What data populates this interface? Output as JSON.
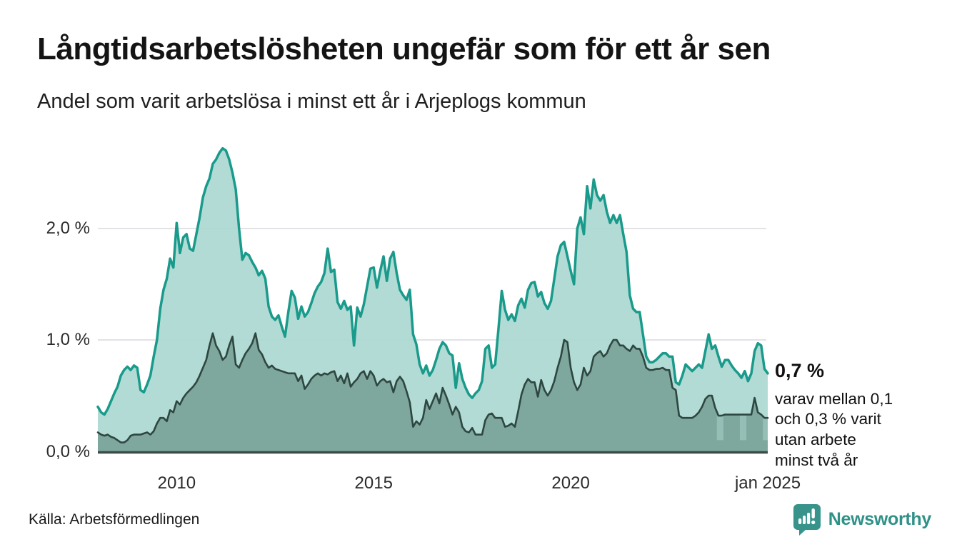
{
  "title": "Långtidsarbetslösheten ungefär som för ett år sen",
  "subtitle": "Andel som varit arbetslösa i minst ett år i Arjeplogs kommun",
  "annotation": {
    "value_label": "0,7 %",
    "lines": [
      "varav mellan 0,1",
      "och 0,3 % varit",
      "utan arbete",
      "minst två år"
    ]
  },
  "source": "Källa: Arbetsförmedlingen",
  "logo": {
    "name": "Newsworthy",
    "icon": "newsworthy-speech-bubble-bars-icon",
    "color": "#2f9187"
  },
  "chart_data": {
    "type": "area",
    "title": "Långtidsarbetslösheten ungefär som för ett år sen",
    "subtitle": "Andel som varit arbetslösa i minst ett år i Arjeplogs kommun",
    "x_start": "2008-01",
    "x_end": "2025-01",
    "frequency": "monthly",
    "ylim": [
      0,
      2.77
    ],
    "grid": "horizontal",
    "legend": "none",
    "colors": {
      "grid": "#e2e2e7",
      "baseline": "#3c4b46",
      "tick_text": "#2b2b2b"
    },
    "yticks": [
      {
        "label": "2,0 %",
        "value": 2.0
      },
      {
        "label": "1,0 %",
        "value": 1.0
      },
      {
        "label": "0,0 %",
        "value": 0.0
      }
    ],
    "xticks": [
      {
        "label": "2010",
        "month_index": 24
      },
      {
        "label": "2015",
        "month_index": 84
      },
      {
        "label": "2020",
        "month_index": 144
      },
      {
        "label": "jan 2025",
        "month_index": 204
      }
    ],
    "series": [
      {
        "name": "Andel arbetslösa minst ett år",
        "line_color": "#199a8b",
        "fill_color": "#abd8d1",
        "last_value_label": "0,7 %",
        "values": [
          0.4,
          0.35,
          0.33,
          0.38,
          0.45,
          0.52,
          0.58,
          0.68,
          0.73,
          0.76,
          0.73,
          0.77,
          0.75,
          0.55,
          0.53,
          0.6,
          0.68,
          0.85,
          1.0,
          1.28,
          1.45,
          1.55,
          1.73,
          1.65,
          2.05,
          1.78,
          1.92,
          1.95,
          1.82,
          1.8,
          1.95,
          2.1,
          2.28,
          2.38,
          2.45,
          2.58,
          2.62,
          2.68,
          2.72,
          2.7,
          2.62,
          2.5,
          2.35,
          2.0,
          1.72,
          1.78,
          1.76,
          1.7,
          1.65,
          1.58,
          1.62,
          1.55,
          1.3,
          1.21,
          1.18,
          1.22,
          1.12,
          1.03,
          1.25,
          1.44,
          1.38,
          1.19,
          1.3,
          1.21,
          1.25,
          1.33,
          1.42,
          1.48,
          1.52,
          1.6,
          1.82,
          1.61,
          1.63,
          1.34,
          1.28,
          1.35,
          1.27,
          1.3,
          0.95,
          1.29,
          1.21,
          1.32,
          1.48,
          1.64,
          1.65,
          1.47,
          1.62,
          1.75,
          1.53,
          1.73,
          1.79,
          1.6,
          1.45,
          1.4,
          1.36,
          1.45,
          1.05,
          0.96,
          0.78,
          0.7,
          0.77,
          0.68,
          0.73,
          0.82,
          0.92,
          0.98,
          0.95,
          0.88,
          0.86,
          0.57,
          0.79,
          0.65,
          0.57,
          0.51,
          0.48,
          0.52,
          0.55,
          0.63,
          0.92,
          0.95,
          0.75,
          0.78,
          1.1,
          1.44,
          1.27,
          1.18,
          1.23,
          1.17,
          1.31,
          1.37,
          1.29,
          1.45,
          1.51,
          1.52,
          1.39,
          1.43,
          1.33,
          1.28,
          1.35,
          1.55,
          1.75,
          1.85,
          1.88,
          1.75,
          1.62,
          1.5,
          2.0,
          2.1,
          1.95,
          2.38,
          2.18,
          2.44,
          2.3,
          2.25,
          2.3,
          2.15,
          2.05,
          2.12,
          2.05,
          2.12,
          1.95,
          1.79,
          1.4,
          1.28,
          1.25,
          1.25,
          1.05,
          0.85,
          0.8,
          0.8,
          0.82,
          0.85,
          0.88,
          0.88,
          0.85,
          0.85,
          0.62,
          0.6,
          0.68,
          0.78,
          0.75,
          0.72,
          0.75,
          0.78,
          0.75,
          0.9,
          1.05,
          0.92,
          0.95,
          0.85,
          0.76,
          0.82,
          0.82,
          0.77,
          0.73,
          0.7,
          0.66,
          0.72,
          0.63,
          0.7,
          0.9,
          0.97,
          0.95,
          0.74,
          0.7
        ]
      },
      {
        "name": "Andel arbetslösa minst två år",
        "line_color": "#2e4640",
        "fill_color": "#7ea79d",
        "band_fill_color": "#95bfb6",
        "uncertainty_bands": [
          {
            "start": 189,
            "end": 190,
            "low": 0.1
          },
          {
            "start": 196,
            "end": 197,
            "low": 0.1
          },
          {
            "start": 203,
            "end": 204,
            "low": 0.1
          }
        ],
        "values": [
          0.17,
          0.15,
          0.14,
          0.15,
          0.13,
          0.12,
          0.1,
          0.08,
          0.08,
          0.1,
          0.14,
          0.15,
          0.15,
          0.15,
          0.16,
          0.17,
          0.15,
          0.18,
          0.25,
          0.3,
          0.3,
          0.27,
          0.37,
          0.35,
          0.45,
          0.42,
          0.48,
          0.52,
          0.55,
          0.58,
          0.62,
          0.68,
          0.75,
          0.82,
          0.95,
          1.06,
          0.95,
          0.9,
          0.82,
          0.85,
          0.95,
          1.03,
          0.78,
          0.75,
          0.82,
          0.88,
          0.92,
          0.97,
          1.06,
          0.91,
          0.87,
          0.8,
          0.75,
          0.77,
          0.74,
          0.73,
          0.72,
          0.71,
          0.7,
          0.7,
          0.7,
          0.63,
          0.68,
          0.56,
          0.6,
          0.65,
          0.68,
          0.7,
          0.68,
          0.7,
          0.69,
          0.71,
          0.72,
          0.63,
          0.68,
          0.61,
          0.7,
          0.58,
          0.62,
          0.65,
          0.7,
          0.72,
          0.65,
          0.72,
          0.68,
          0.59,
          0.63,
          0.65,
          0.62,
          0.63,
          0.53,
          0.63,
          0.67,
          0.63,
          0.54,
          0.44,
          0.22,
          0.27,
          0.24,
          0.3,
          0.46,
          0.38,
          0.45,
          0.52,
          0.43,
          0.57,
          0.5,
          0.42,
          0.33,
          0.4,
          0.35,
          0.22,
          0.18,
          0.17,
          0.21,
          0.15,
          0.15,
          0.15,
          0.28,
          0.33,
          0.34,
          0.3,
          0.3,
          0.3,
          0.22,
          0.23,
          0.25,
          0.22,
          0.36,
          0.51,
          0.6,
          0.65,
          0.62,
          0.62,
          0.49,
          0.64,
          0.55,
          0.5,
          0.55,
          0.63,
          0.75,
          0.85,
          1.0,
          0.98,
          0.75,
          0.62,
          0.55,
          0.6,
          0.75,
          0.68,
          0.72,
          0.85,
          0.88,
          0.9,
          0.85,
          0.88,
          0.95,
          1.0,
          1.0,
          0.95,
          0.95,
          0.92,
          0.9,
          0.95,
          0.92,
          0.92,
          0.85,
          0.75,
          0.73,
          0.73,
          0.74,
          0.74,
          0.75,
          0.73,
          0.73,
          0.57,
          0.55,
          0.32,
          0.3,
          0.3,
          0.3,
          0.3,
          0.32,
          0.35,
          0.4,
          0.47,
          0.5,
          0.5,
          0.39,
          0.32,
          0.32,
          0.33,
          0.33,
          0.33,
          0.33,
          0.33,
          0.33,
          0.33,
          0.33,
          0.33,
          0.48,
          0.35,
          0.33,
          0.3,
          0.3
        ]
      }
    ]
  }
}
